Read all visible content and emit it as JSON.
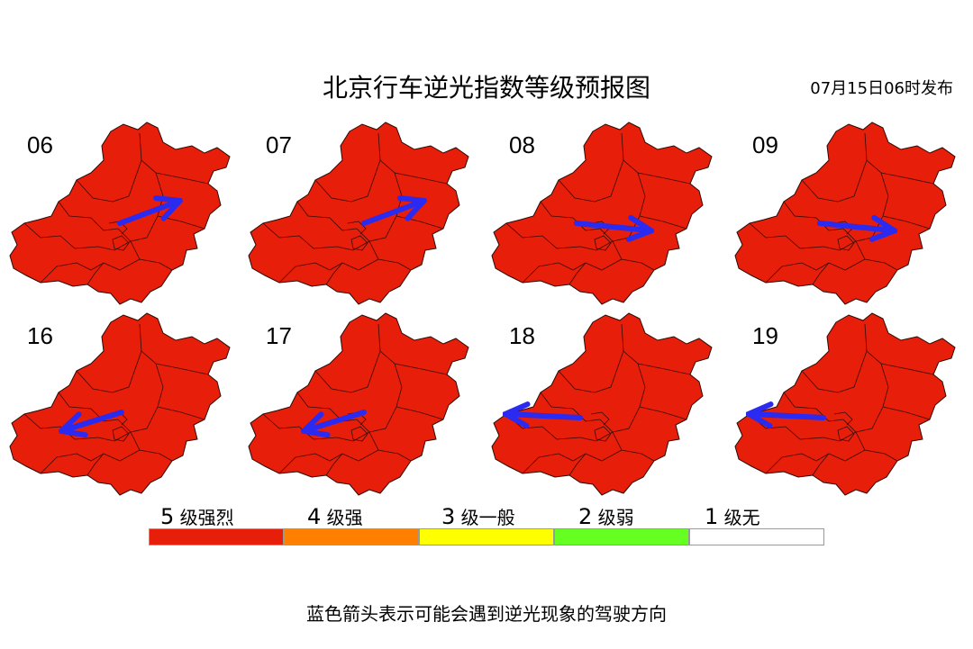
{
  "title": "北京行车逆光指数等级预报图",
  "issued": "07月15日06时发布",
  "map_fill": "#e61e0a",
  "arrow_color": "#2a2af0",
  "panels": [
    {
      "hour": "06",
      "level": 5,
      "arrow": "northeast"
    },
    {
      "hour": "07",
      "level": 5,
      "arrow": "northeast"
    },
    {
      "hour": "08",
      "level": 5,
      "arrow": "east"
    },
    {
      "hour": "09",
      "level": 5,
      "arrow": "east"
    },
    {
      "hour": "16",
      "level": 5,
      "arrow": "west-southwest"
    },
    {
      "hour": "17",
      "level": 5,
      "arrow": "west-southwest"
    },
    {
      "hour": "18",
      "level": 5,
      "arrow": "west"
    },
    {
      "hour": "19",
      "level": 5,
      "arrow": "west"
    }
  ],
  "legend": [
    {
      "num": "5",
      "label": "级强烈",
      "color": "#e61e0a"
    },
    {
      "num": "4",
      "label": "级强",
      "color": "#ff7f00"
    },
    {
      "num": "3",
      "label": "级一般",
      "color": "#ffff00"
    },
    {
      "num": "2",
      "label": "级弱",
      "color": "#66ff22"
    },
    {
      "num": "1",
      "label": "级无",
      "color": "#ffffff"
    }
  ],
  "note": "蓝色箭头表示可能会遇到逆光现象的驾驶方向"
}
